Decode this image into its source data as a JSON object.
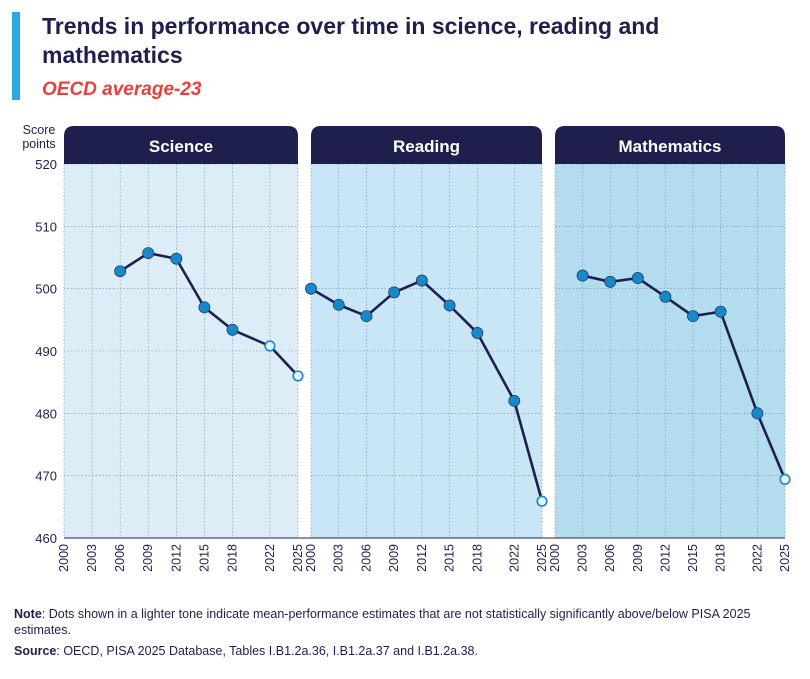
{
  "header": {
    "title": "Trends in performance over time in science, reading and mathematics",
    "subtitle": "OECD average-23"
  },
  "footer": {
    "note_label": "Note",
    "note_text": ": Dots shown in a lighter tone indicate mean-performance estimates that are not statistically significantly above/below PISA 2025 estimates.",
    "source_label": "Source",
    "source_text": ":  OECD, PISA 2025 Database, Tables I.B1.2a.36, I.B1.2a.37 and I.B1.2a.38."
  },
  "colors": {
    "navy": "#1f1f4d",
    "dark_dot": "#1589c9",
    "light_dot_fill": "#e6f4fb",
    "science_bg": "#dcedf8",
    "reading_bg": "#c9e6f6",
    "math_bg": "#b4dcef",
    "grid": "#7a8ea8"
  },
  "chart_data": {
    "type": "line",
    "ylabel": "Score\npoints",
    "ylim": [
      460,
      520
    ],
    "yticks": [
      460,
      470,
      480,
      490,
      500,
      510,
      520
    ],
    "xticks": [
      "2000",
      "2003",
      "2006",
      "2009",
      "2012",
      "2015",
      "2018",
      "2022",
      "2025"
    ],
    "legend": "none",
    "grid": true,
    "panels": [
      {
        "name": "Science",
        "x": [
          "2006",
          "2009",
          "2012",
          "2015",
          "2018",
          "2022",
          "2025"
        ],
        "values": [
          502.8,
          505.7,
          504.8,
          497.0,
          493.4,
          490.8,
          486.0
        ],
        "light": [
          false,
          false,
          false,
          false,
          false,
          true,
          true
        ]
      },
      {
        "name": "Reading",
        "x": [
          "2000",
          "2003",
          "2006",
          "2009",
          "2012",
          "2015",
          "2018",
          "2022",
          "2025"
        ],
        "values": [
          500.0,
          497.4,
          495.6,
          499.4,
          501.3,
          497.3,
          492.9,
          482.0,
          465.9
        ],
        "light": [
          false,
          false,
          false,
          false,
          false,
          false,
          false,
          false,
          true
        ]
      },
      {
        "name": "Mathematics",
        "x": [
          "2003",
          "2006",
          "2009",
          "2012",
          "2015",
          "2018",
          "2022",
          "2025"
        ],
        "values": [
          502.1,
          501.1,
          501.7,
          498.7,
          495.6,
          496.3,
          480.0,
          469.4
        ],
        "light": [
          false,
          false,
          false,
          false,
          false,
          false,
          false,
          true
        ]
      }
    ]
  }
}
